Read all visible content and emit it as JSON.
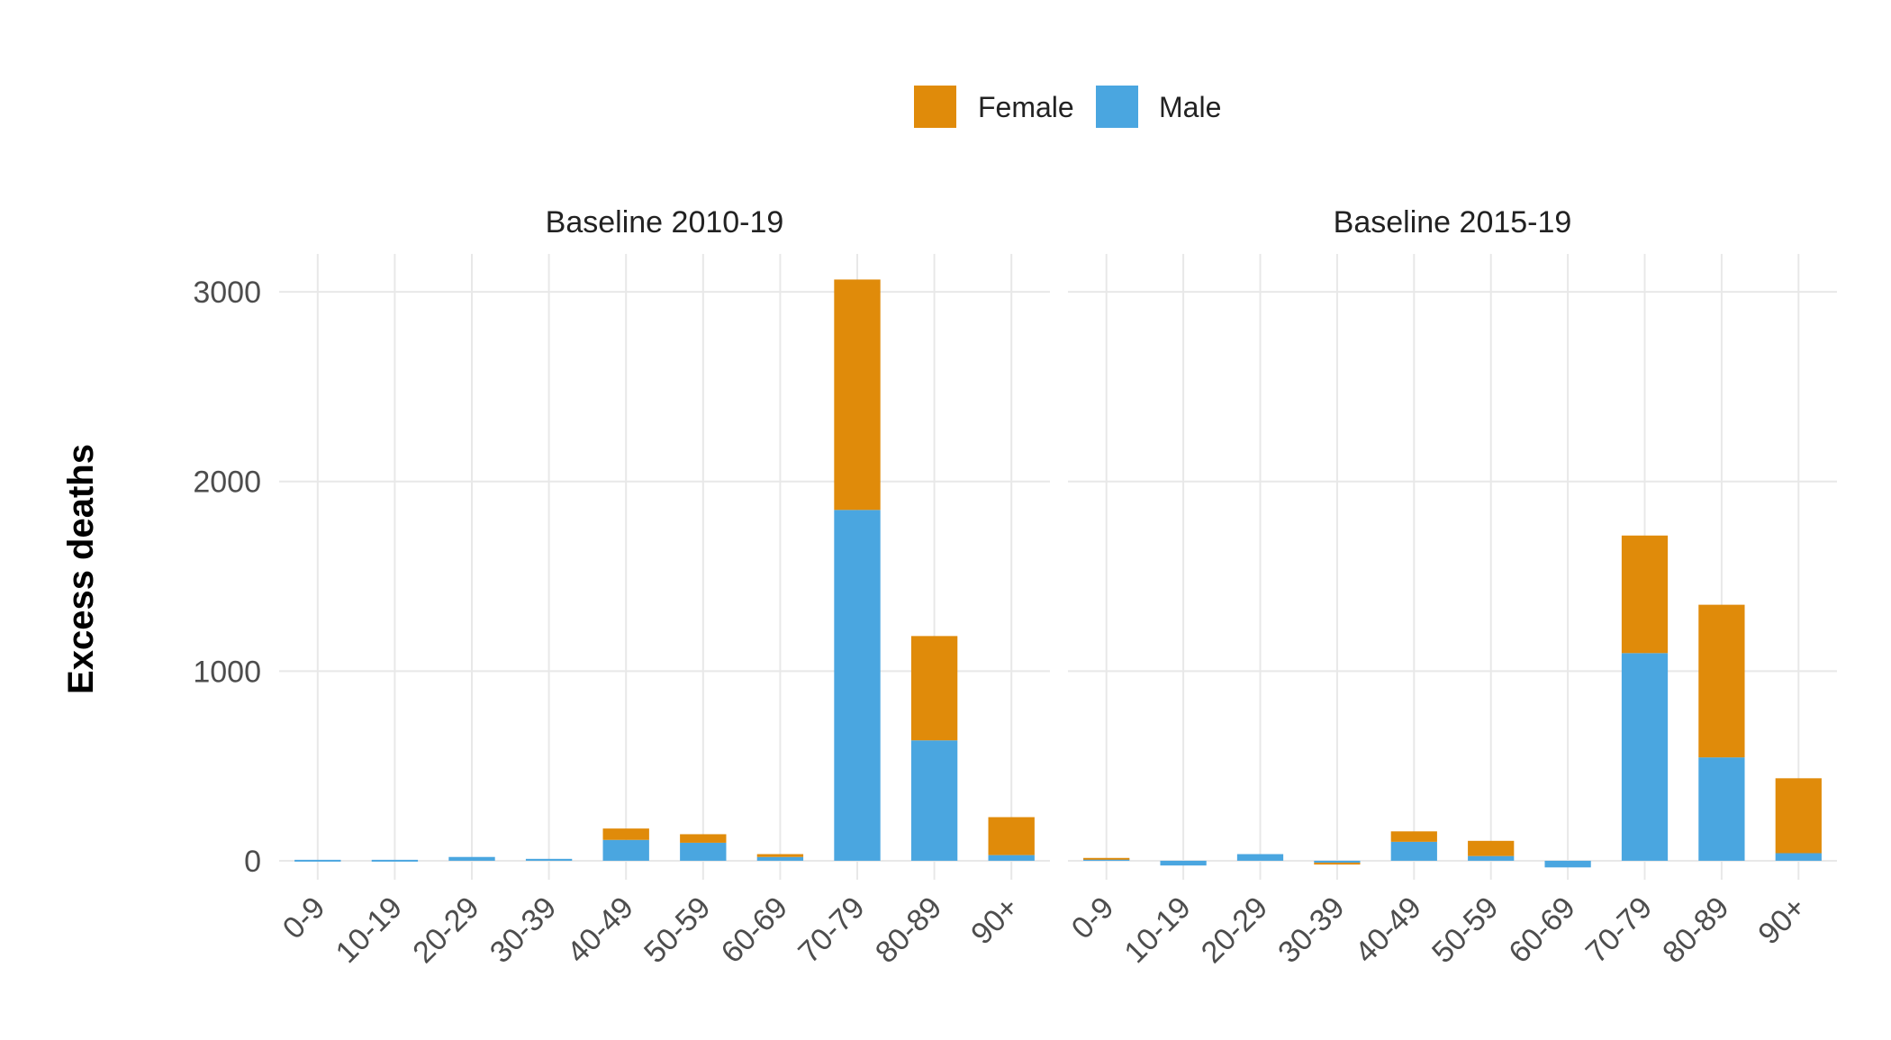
{
  "chart_data": {
    "type": "bar",
    "stacked": true,
    "ylabel": "Excess deaths",
    "yticks": [
      0,
      1000,
      2000,
      3000
    ],
    "ylim": [
      -100,
      3200
    ],
    "categories": [
      "0-9",
      "10-19",
      "20-29",
      "30-39",
      "40-49",
      "50-59",
      "60-69",
      "70-79",
      "80-89",
      "90+"
    ],
    "legend": {
      "position": "top",
      "entries": [
        {
          "name": "Female",
          "color": "#E08B0A"
        },
        {
          "name": "Male",
          "color": "#4AA6E0"
        }
      ]
    },
    "panels": [
      {
        "title": "Baseline 2010-19",
        "series": [
          {
            "name": "Male",
            "values": [
              5,
              5,
              20,
              10,
              110,
              95,
              20,
              1850,
              635,
              30
            ]
          },
          {
            "name": "Female",
            "values": [
              0,
              0,
              0,
              0,
              60,
              45,
              15,
              1215,
              550,
              200
            ]
          }
        ]
      },
      {
        "title": "Baseline 2015-19",
        "series": [
          {
            "name": "Male",
            "values": [
              10,
              -25,
              35,
              -10,
              100,
              25,
              -35,
              1095,
              545,
              40
            ]
          },
          {
            "name": "Female",
            "values": [
              5,
              0,
              0,
              -10,
              55,
              80,
              0,
              620,
              805,
              395
            ]
          }
        ]
      }
    ]
  }
}
